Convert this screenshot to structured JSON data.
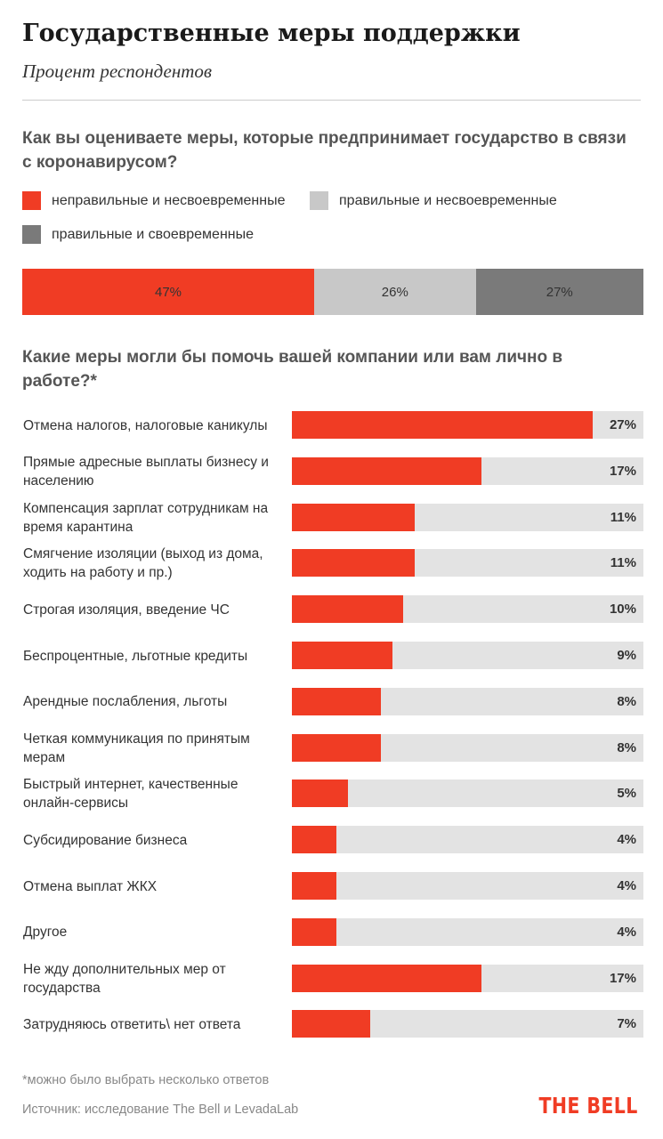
{
  "header": {
    "title": "Государственные меры поддержки",
    "subtitle": "Процент респондентов"
  },
  "colors": {
    "accent": "#f03c24",
    "light_gray": "#c8c8c8",
    "dark_gray": "#7a7a7a",
    "track": "#e3e3e3"
  },
  "chart_data": [
    {
      "type": "bar",
      "orientation": "horizontal-stacked",
      "title": "Как вы оцениваете меры, которые предпринимает государство в связи с коронавирусом?",
      "series": [
        {
          "name": "неправильные и несвоевременные",
          "value": 47,
          "label": "47%",
          "color": "#f03c24"
        },
        {
          "name": "правильные и несвоевременные",
          "value": 26,
          "label": "26%",
          "color": "#c8c8c8"
        },
        {
          "name": "правильные и своевременные",
          "value": 27,
          "label": "27%",
          "color": "#7a7a7a"
        }
      ],
      "legend": "top"
    },
    {
      "type": "bar",
      "orientation": "horizontal",
      "title": "Какие меры могли бы помочь вашей компании или вам лично в работе?*",
      "xlim": [
        0,
        27
      ],
      "categories": [
        "Отмена налогов, налоговые каникулы",
        "Прямые адресные выплаты бизнесу и населению",
        "Компенсация зарплат сотрудникам на время карантина",
        "Смягчение изоляции (выход из дома, ходить на работу и пр.)",
        "Строгая изоляция, введение ЧС",
        "Беспроцентные, льготные кредиты",
        "Арендные послабления, льготы",
        "Четкая коммуникация по принятым мерам",
        "Быстрый интернет, качественные онлайн-сервисы",
        "Субсидирование бизнеса",
        "Отмена выплат ЖКХ",
        "Другое",
        "Не жду дополнительных мер от государства",
        "Затрудняюсь ответить\\ нет ответа"
      ],
      "values": [
        27,
        17,
        11,
        11,
        10,
        9,
        8,
        8,
        5,
        4,
        4,
        4,
        17,
        7
      ],
      "value_labels": [
        "27%",
        "17%",
        "11%",
        "11%",
        "10%",
        "9%",
        "8%",
        "8%",
        "5%",
        "4%",
        "4%",
        "4%",
        "17%",
        "7%"
      ]
    }
  ],
  "footer": {
    "footnote": "*можно было выбрать несколько ответов",
    "source": "Источник: исследование The Bell и LevadaLab",
    "logo": "THE BELL"
  }
}
